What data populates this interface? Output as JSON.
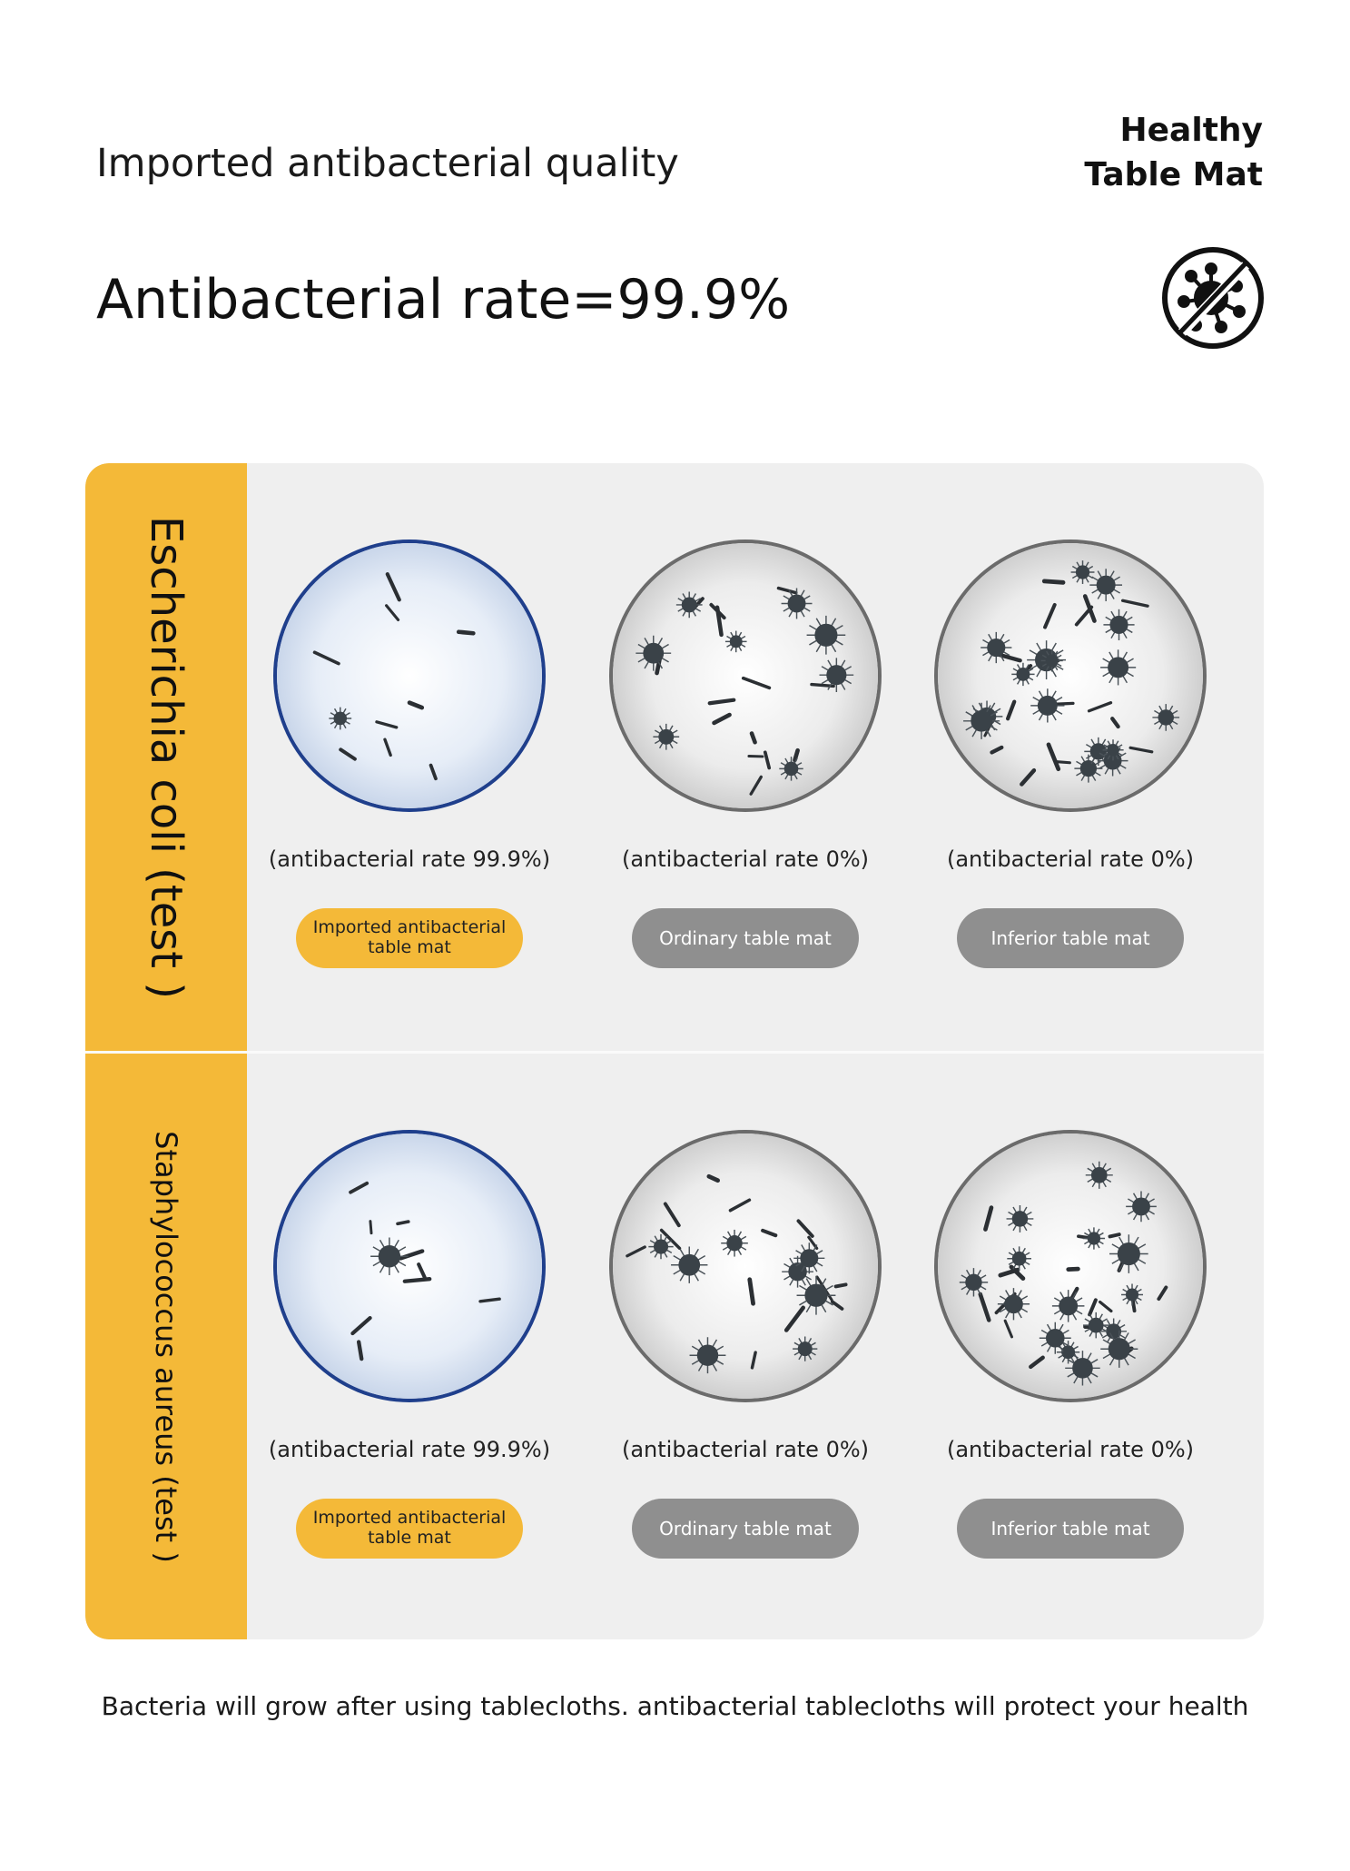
{
  "header": {
    "subtitle": "Imported antibacterial quality",
    "headline": "Antibacterial rate=99.9%",
    "brand_line1": "Healthy",
    "brand_line2": "Table Mat",
    "brand_icon": "no-bacteria-icon"
  },
  "rows": [
    {
      "label": "Escherichia coli (test )",
      "items": [
        {
          "rate": "(antibacterial rate 99.9%)",
          "name": "Imported antibacterial table mat",
          "style": "yellow",
          "dish": "blue",
          "bacteria_density": "low"
        },
        {
          "rate": "(antibacterial rate 0%)",
          "name": "Ordinary table mat",
          "style": "grey",
          "dish": "grey",
          "bacteria_density": "medium"
        },
        {
          "rate": "(antibacterial rate 0%)",
          "name": "Inferior table mat",
          "style": "grey",
          "dish": "grey",
          "bacteria_density": "high"
        }
      ]
    },
    {
      "label": "Staphylococcus aureus (test )",
      "items": [
        {
          "rate": "(antibacterial rate 99.9%)",
          "name": "Imported antibacterial table mat",
          "style": "yellow",
          "dish": "blue",
          "bacteria_density": "low"
        },
        {
          "rate": "(antibacterial rate 0%)",
          "name": "Ordinary table mat",
          "style": "grey",
          "dish": "grey",
          "bacteria_density": "medium"
        },
        {
          "rate": "(antibacterial rate 0%)",
          "name": "Inferior table mat",
          "style": "grey",
          "dish": "grey",
          "bacteria_density": "high"
        }
      ]
    }
  ],
  "footer": "Bacteria will grow after using tablecloths. antibacterial tablecloths will protect your health",
  "colors": {
    "accent": "#f4b938",
    "dish_blue": "#1f3f8c",
    "pill_grey": "#8f8f8f",
    "panel": "#efefef"
  }
}
